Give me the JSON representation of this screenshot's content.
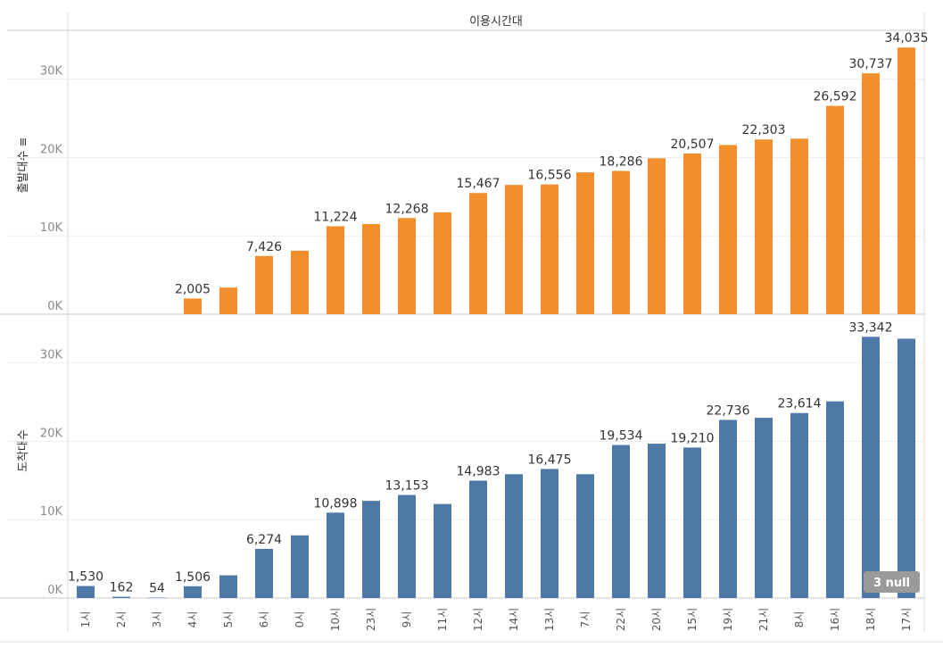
{
  "chart_data": {
    "type": "bar",
    "column_header": "이용시간대",
    "categories": [
      "1시",
      "2시",
      "3시",
      "4시",
      "5시",
      "6시",
      "0시",
      "10시",
      "23시",
      "9시",
      "11시",
      "12시",
      "14시",
      "13시",
      "7시",
      "22시",
      "20시",
      "15시",
      "19시",
      "21시",
      "8시",
      "16시",
      "18시",
      "17시"
    ],
    "series": [
      {
        "name": "출발대수",
        "axis_title": "출발대수 ≡",
        "color": "#f28e2b",
        "ylim": [
          0,
          36000
        ],
        "yticks": [
          0,
          10000,
          20000,
          30000
        ],
        "ytick_labels": [
          "0K",
          "10K",
          "20K",
          "30K"
        ],
        "values": [
          null,
          null,
          null,
          2005,
          3400,
          7426,
          8100,
          11224,
          11500,
          12268,
          13000,
          15467,
          16500,
          16556,
          18100,
          18286,
          19900,
          20507,
          21600,
          22303,
          22400,
          26592,
          30737,
          34035
        ],
        "labels": [
          "",
          "",
          "",
          "2,005",
          "",
          "7,426",
          "",
          "11,224",
          "",
          "12,268",
          "",
          "15,467",
          "",
          "16,556",
          "",
          "18,286",
          "",
          "20,507",
          "",
          "22,303",
          "",
          "26,592",
          "30,737",
          "34,035"
        ]
      },
      {
        "name": "도착대수",
        "axis_title": "도착대수",
        "color": "#4e79a7",
        "ylim": [
          0,
          36000
        ],
        "yticks": [
          0,
          10000,
          20000,
          30000
        ],
        "ytick_labels": [
          "0K",
          "10K",
          "20K",
          "30K"
        ],
        "values": [
          1530,
          162,
          54,
          1506,
          2900,
          6274,
          8000,
          10898,
          12400,
          13153,
          12000,
          14983,
          15800,
          16475,
          15800,
          19534,
          19700,
          19210,
          22736,
          23000,
          23614,
          25100,
          33342,
          33100
        ],
        "labels": [
          "1,530",
          "162",
          "54",
          "1,506",
          "",
          "6,274",
          "",
          "10,898",
          "",
          "13,153",
          "",
          "14,983",
          "",
          "16,475",
          "",
          "19,534",
          "",
          "19,210",
          "22,736",
          "",
          "23,614",
          "",
          "33,342",
          ""
        ]
      }
    ],
    "null_indicator": "3 null"
  }
}
